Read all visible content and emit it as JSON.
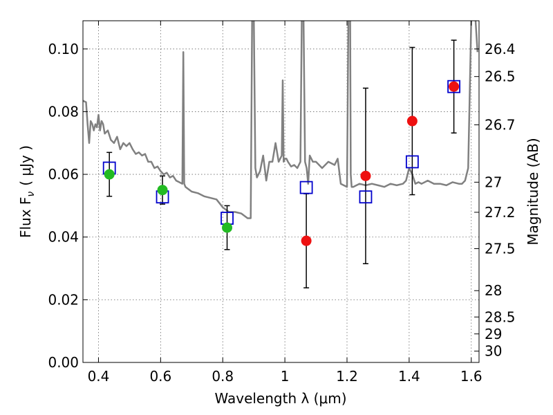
{
  "chart_data": {
    "type": "scatter",
    "title": "",
    "xlabel": "Wavelength  λ (μm)",
    "ylabel": "Flux  F",
    "ylabel_sub": "ν",
    "ylabel_unit": "( μJy )",
    "y2label": "Magnitude (AB)",
    "xlim": [
      0.35,
      1.625
    ],
    "ylim": [
      0.0,
      0.109
    ],
    "grid": true,
    "legend": "none",
    "x_ticks": [
      0.4,
      0.6,
      0.8,
      1.0,
      1.2,
      1.4,
      1.6
    ],
    "x_tick_labels": [
      "0.4",
      "0.6",
      "0.8",
      "1",
      "1.2",
      "1.4",
      "1.6"
    ],
    "y_ticks": [
      0.0,
      0.02,
      0.04,
      0.06,
      0.08,
      0.1
    ],
    "y_tick_labels": [
      "0.00",
      "0.02",
      "0.04",
      "0.06",
      "0.08",
      "0.10"
    ],
    "mag_ticks": [
      {
        "label": "26.4",
        "flux": 0.1
      },
      {
        "label": "26.5",
        "flux": 0.0912
      },
      {
        "label": "26.7",
        "flux": 0.0758
      },
      {
        "label": "27",
        "flux": 0.0575
      },
      {
        "label": "27.2",
        "flux": 0.0479
      },
      {
        "label": "27.5",
        "flux": 0.0363
      },
      {
        "label": "28",
        "flux": 0.0229
      },
      {
        "label": "28.5",
        "flux": 0.0145
      },
      {
        "label": "29",
        "flux": 0.0091
      },
      {
        "label": "30",
        "flux": 0.0036
      }
    ],
    "colors": {
      "model": "#808080",
      "model_photometry": "#0000cc",
      "optical_data": "#22bb22",
      "nir_data": "#ee1111",
      "errorbar": "#000000"
    },
    "series": [
      {
        "kind": "observed-optical",
        "points": [
          {
            "x": 0.435,
            "y": 0.06,
            "err": 0.007
          },
          {
            "x": 0.606,
            "y": 0.055,
            "err": 0.0045
          },
          {
            "x": 0.814,
            "y": 0.043,
            "err": 0.007
          }
        ]
      },
      {
        "kind": "observed-nir",
        "points": [
          {
            "x": 1.069,
            "y": 0.0388,
            "err": 0.015
          },
          {
            "x": 1.26,
            "y": 0.0595,
            "err": 0.028
          },
          {
            "x": 1.41,
            "y": 0.077,
            "err": 0.0235
          },
          {
            "x": 1.544,
            "y": 0.088,
            "err": 0.0148
          }
        ]
      },
      {
        "kind": "model-photometry",
        "points": [
          {
            "x": 0.435,
            "y": 0.062
          },
          {
            "x": 0.606,
            "y": 0.0528
          },
          {
            "x": 0.814,
            "y": 0.046
          },
          {
            "x": 1.069,
            "y": 0.0558
          },
          {
            "x": 1.26,
            "y": 0.0528
          },
          {
            "x": 1.41,
            "y": 0.064
          },
          {
            "x": 1.544,
            "y": 0.088
          }
        ]
      },
      {
        "kind": "model-spectrum",
        "x": [
          0.35,
          0.36,
          0.365,
          0.37,
          0.375,
          0.38,
          0.385,
          0.39,
          0.395,
          0.4,
          0.405,
          0.41,
          0.415,
          0.42,
          0.43,
          0.44,
          0.45,
          0.46,
          0.47,
          0.48,
          0.49,
          0.5,
          0.51,
          0.52,
          0.53,
          0.54,
          0.55,
          0.56,
          0.57,
          0.58,
          0.59,
          0.6,
          0.61,
          0.62,
          0.63,
          0.64,
          0.65,
          0.66,
          0.67,
          0.673,
          0.676,
          0.68,
          0.7,
          0.72,
          0.74,
          0.76,
          0.78,
          0.8,
          0.82,
          0.84,
          0.86,
          0.88,
          0.89,
          0.895,
          0.9,
          0.905,
          0.91,
          0.915,
          0.92,
          0.93,
          0.94,
          0.95,
          0.96,
          0.97,
          0.98,
          0.99,
          0.993,
          0.996,
          1.0,
          1.005,
          1.01,
          1.02,
          1.03,
          1.04,
          1.05,
          1.055,
          1.06,
          1.065,
          1.07,
          1.075,
          1.08,
          1.09,
          1.1,
          1.12,
          1.14,
          1.16,
          1.17,
          1.18,
          1.2,
          1.205,
          1.21,
          1.212,
          1.215,
          1.22,
          1.24,
          1.26,
          1.28,
          1.3,
          1.32,
          1.34,
          1.36,
          1.38,
          1.39,
          1.4,
          1.41,
          1.42,
          1.43,
          1.44,
          1.46,
          1.48,
          1.5,
          1.52,
          1.54,
          1.56,
          1.57,
          1.58,
          1.59,
          1.6,
          1.61,
          1.62
        ],
        "y": [
          0.0835,
          0.083,
          0.076,
          0.07,
          0.077,
          0.076,
          0.074,
          0.076,
          0.075,
          0.079,
          0.074,
          0.077,
          0.076,
          0.073,
          0.074,
          0.071,
          0.07,
          0.072,
          0.068,
          0.07,
          0.069,
          0.07,
          0.068,
          0.0665,
          0.067,
          0.066,
          0.0665,
          0.064,
          0.064,
          0.062,
          0.0625,
          0.061,
          0.06,
          0.0605,
          0.059,
          0.0595,
          0.058,
          0.0575,
          0.057,
          0.099,
          0.057,
          0.056,
          0.0545,
          0.054,
          0.053,
          0.0525,
          0.052,
          0.0495,
          0.048,
          0.048,
          0.0475,
          0.046,
          0.046,
          0.115,
          0.11,
          0.062,
          0.059,
          0.06,
          0.061,
          0.066,
          0.058,
          0.064,
          0.064,
          0.07,
          0.064,
          0.066,
          0.09,
          0.064,
          0.065,
          0.065,
          0.064,
          0.0625,
          0.063,
          0.062,
          0.064,
          0.115,
          0.11,
          0.064,
          0.062,
          0.057,
          0.066,
          0.064,
          0.064,
          0.062,
          0.064,
          0.063,
          0.065,
          0.057,
          0.056,
          0.115,
          0.115,
          0.06,
          0.056,
          0.056,
          0.057,
          0.0565,
          0.057,
          0.0565,
          0.056,
          0.057,
          0.0565,
          0.057,
          0.058,
          0.062,
          0.06,
          0.057,
          0.0575,
          0.057,
          0.058,
          0.057,
          0.057,
          0.0565,
          0.0575,
          0.057,
          0.057,
          0.058,
          0.062,
          0.11,
          0.115,
          0.099
        ]
      }
    ]
  }
}
